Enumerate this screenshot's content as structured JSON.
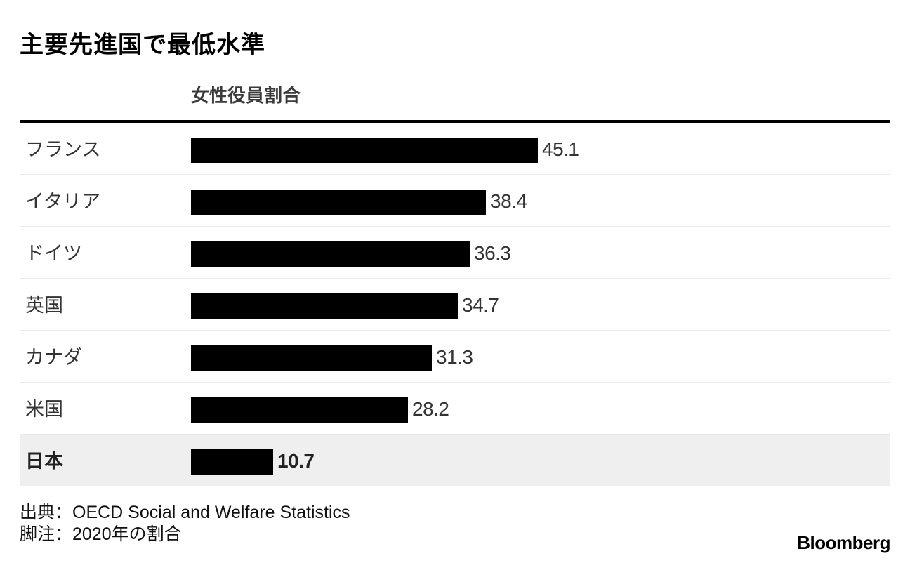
{
  "title": "主要先進国で最低水準",
  "column_header": "女性役員割合",
  "chart_data": {
    "type": "bar",
    "orientation": "horizontal",
    "title": "主要先進国で最低水準",
    "value_label": "女性役員割合",
    "categories": [
      "フランス",
      "イタリア",
      "ドイツ",
      "英国",
      "カナダ",
      "米国",
      "日本"
    ],
    "values": [
      45.1,
      38.4,
      36.3,
      34.7,
      31.3,
      28.2,
      10.7
    ],
    "value_labels": [
      "45.1",
      "38.4",
      "36.3",
      "34.7",
      "31.3",
      "28.2",
      "10.7"
    ],
    "highlighted_category": "日本",
    "xlim": [
      0,
      100
    ],
    "bar_color": "#000000",
    "highlight_row_color": "#efefef"
  },
  "footer": {
    "source": "出典：OECD Social and Welfare Statistics",
    "note": "脚注：2020年の割合"
  },
  "brand": "Bloomberg"
}
